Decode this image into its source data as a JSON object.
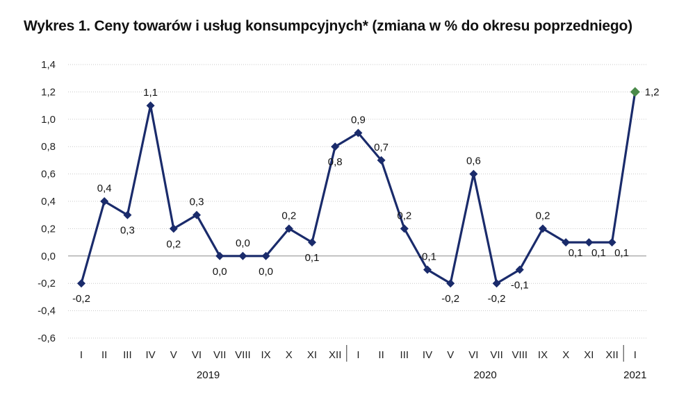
{
  "chart_data": {
    "type": "line",
    "title": "Wykres 1. Ceny towarów i usług konsumpcyjnych* (zmiana w % do okresu poprzedniego)",
    "categories": [
      "I",
      "II",
      "III",
      "IV",
      "V",
      "VI",
      "VII",
      "VIII",
      "IX",
      "X",
      "XI",
      "XII",
      "I",
      "II",
      "III",
      "IV",
      "V",
      "VI",
      "VII",
      "VIII",
      "IX",
      "X",
      "XI",
      "XII",
      "I"
    ],
    "year_groups": [
      {
        "label": "2019",
        "start": 0,
        "end": 11
      },
      {
        "label": "2020",
        "start": 12,
        "end": 23
      },
      {
        "label": "2021",
        "start": 24,
        "end": 24
      }
    ],
    "series": [
      {
        "values": [
          -0.2,
          0.4,
          0.3,
          1.1,
          0.2,
          0.3,
          0.0,
          0.0,
          0.0,
          0.2,
          0.1,
          0.8,
          0.9,
          0.7,
          0.2,
          -0.1,
          -0.2,
          0.6,
          -0.2,
          -0.1,
          0.2,
          0.1,
          0.1,
          0.1,
          1.2
        ],
        "data_labels": [
          "-0,2",
          "0,4",
          "0,3",
          "1,1",
          "0,2",
          "0,3",
          "0,0",
          "0,0",
          "0,0",
          "0,2",
          "0,1",
          "0,8",
          "0,9",
          "0,7",
          "0,2",
          "-0,1",
          "-0,2",
          "0,6",
          "-0,2",
          "-0,1",
          "0,2",
          "0,1",
          "0,1",
          "0,1",
          "1,2"
        ],
        "color": "#1a2b6b",
        "highlight_last_color": "#4a8a4a"
      }
    ],
    "yticks": [
      1.4,
      1.2,
      1.0,
      0.8,
      0.6,
      0.4,
      0.2,
      0.0,
      -0.2,
      -0.4,
      -0.6
    ],
    "ytick_labels": [
      "1,4",
      "1,2",
      "1,0",
      "0,8",
      "0,6",
      "0,4",
      "0,2",
      "0,0",
      "-0,2",
      "-0,4",
      "-0,6"
    ],
    "ylim": [
      -0.6,
      1.4
    ],
    "grid": true,
    "xlabel": "",
    "ylabel": ""
  }
}
